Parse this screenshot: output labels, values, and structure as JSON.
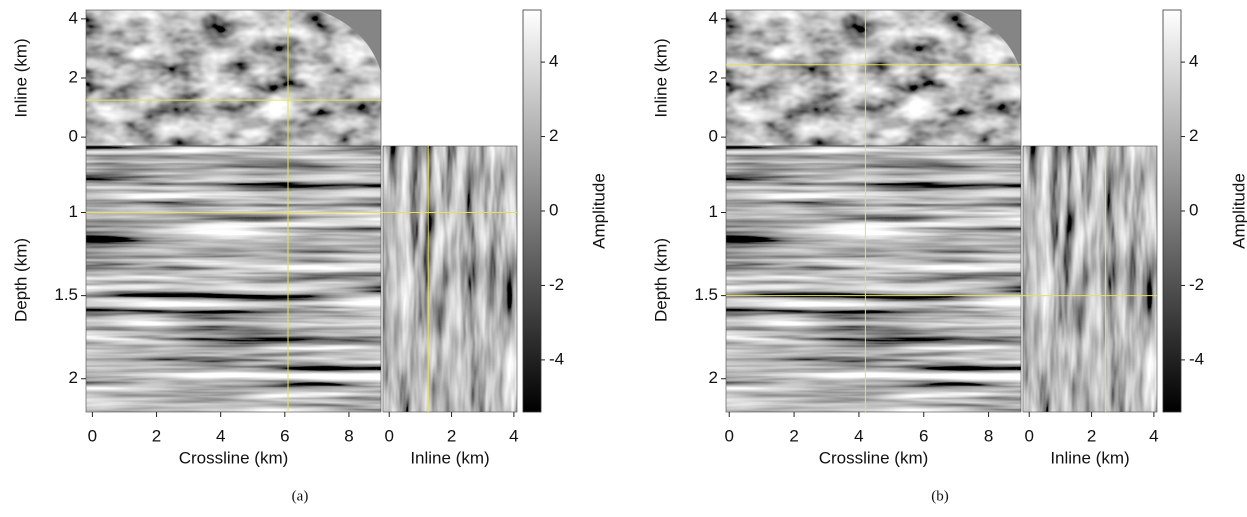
{
  "chart_data": [
    {
      "type": "seismic-slices",
      "caption": "(a)",
      "x_label": "Crossline (km)",
      "y_label": "Depth (km)",
      "top_y_label": "Inline (km)",
      "right_x_label": "Inline (km)",
      "colorbar_label": "Amplitude",
      "xlim": [
        -0.2,
        9.0
      ],
      "xticks": [
        0,
        2,
        4,
        6,
        8
      ],
      "ylim": [
        2.2,
        0.6
      ],
      "yticks": [
        1,
        1.5,
        2
      ],
      "top_ylim": [
        -0.3,
        4.3
      ],
      "top_yticks": [
        0,
        2,
        4
      ],
      "right_xlim": [
        -0.2,
        4.1
      ],
      "right_xticks": [
        0,
        2,
        4
      ],
      "clim": [
        -5.4,
        5.4
      ],
      "cticks": [
        -4,
        -2,
        0,
        2,
        4
      ],
      "crossline": 6.1,
      "inline": 1.25,
      "depth": 1.0,
      "crosshair_color": "#e8e05a"
    },
    {
      "type": "seismic-slices",
      "caption": "(b)",
      "x_label": "Crossline (km)",
      "y_label": "Depth (km)",
      "top_y_label": "Inline (km)",
      "right_x_label": "Inline (km)",
      "colorbar_label": "Amplitude",
      "xlim": [
        -0.1,
        9.0
      ],
      "xticks": [
        0,
        2,
        4,
        6,
        8
      ],
      "ylim": [
        2.2,
        0.6
      ],
      "yticks": [
        1,
        1.5,
        2
      ],
      "top_ylim": [
        -0.3,
        4.3
      ],
      "top_yticks": [
        0,
        2,
        4
      ],
      "right_xlim": [
        -0.2,
        4.1
      ],
      "right_xticks": [
        0,
        2,
        4
      ],
      "clim": [
        -5.4,
        5.4
      ],
      "cticks": [
        -4,
        -2,
        0,
        2,
        4
      ],
      "crossline": 4.2,
      "inline": 2.45,
      "depth": 1.5,
      "crosshair_color": "#e8e05a"
    }
  ]
}
